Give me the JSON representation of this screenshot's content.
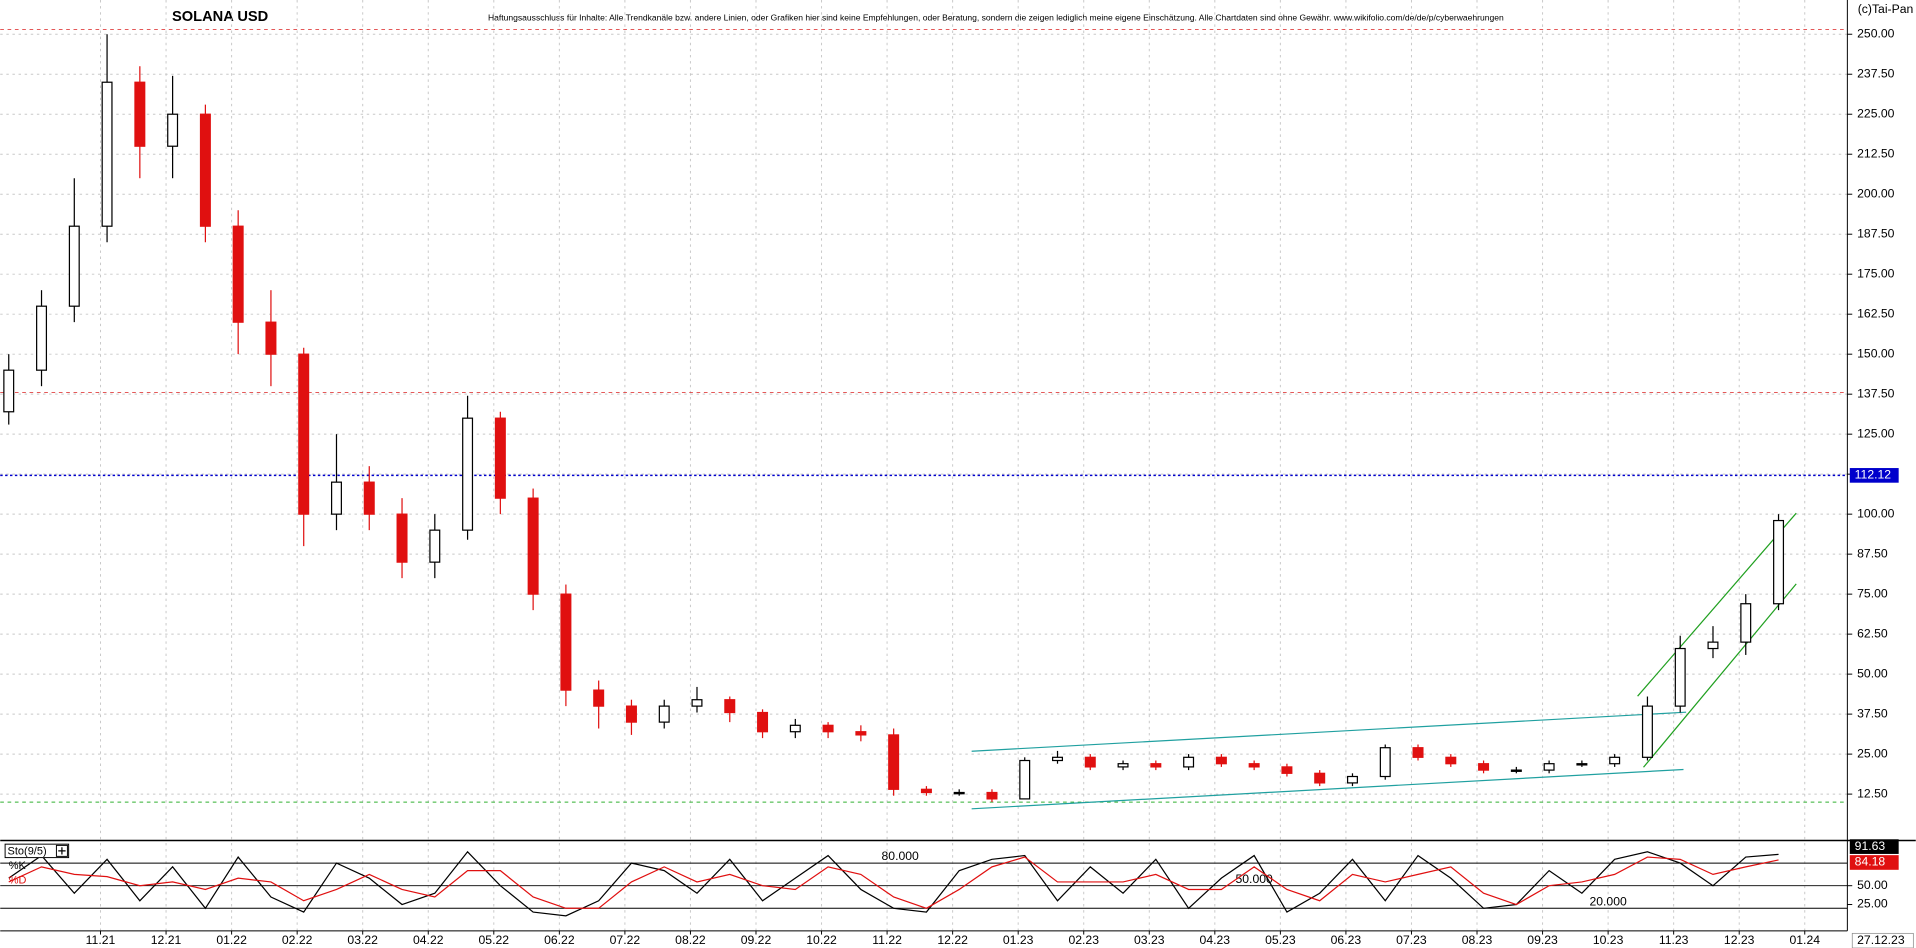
{
  "chart_data": [
    {
      "type": "candlestick",
      "title": "SOLANA USD",
      "subtitle": "Haftungsausschluss für Inhalte: Alle Trendkanäle bzw. andere Linien, oder Grafiken hier sind keine Empfehlungen, oder Beratung, sondern die zeigen lediglich meine eigene Einschätzung. Alle Chartdaten sind ohne Gewähr. www.wikifolio.com/de/de/p/cyberwaehrungen",
      "copyright": "(c)Tai-Pan",
      "up_color": "#000000",
      "down_color": "#e01010",
      "x": [
        -1.4,
        -0.9,
        -0.4,
        0.1,
        0.6,
        1.1,
        1.6,
        2.1,
        2.6,
        3.1,
        3.6,
        4.1,
        4.6,
        5.1,
        5.6,
        6.1,
        6.6,
        7.1,
        7.6,
        8.1,
        8.6,
        9.1,
        9.6,
        10.1,
        10.6,
        11.1,
        11.6,
        12.1,
        12.6,
        13.1,
        13.6,
        14.1,
        14.6,
        15.1,
        15.6,
        16.1,
        16.6,
        17.1,
        17.6,
        18.1,
        18.6,
        19.1,
        19.6,
        20.1,
        20.6,
        21.1,
        21.6,
        22.1,
        22.6,
        23.1,
        23.6,
        24.1,
        24.6,
        25.1,
        25.6
      ],
      "open": [
        132,
        145,
        165,
        190,
        235,
        215,
        225,
        190,
        160,
        150,
        100,
        110,
        100,
        85,
        95,
        130,
        105,
        75,
        45,
        40,
        35,
        40,
        42,
        38,
        32,
        34,
        32,
        31,
        14,
        13,
        13,
        11,
        23,
        24,
        21,
        22,
        21,
        24,
        22,
        21,
        19,
        16,
        18,
        27,
        24,
        22,
        20,
        20,
        22,
        22,
        24,
        40,
        58,
        60,
        72
      ],
      "high": [
        150,
        170,
        205,
        250,
        240,
        237,
        228,
        195,
        170,
        152,
        125,
        115,
        105,
        100,
        137,
        132,
        108,
        78,
        48,
        42,
        42,
        46,
        43,
        39,
        36,
        35,
        34,
        33,
        15,
        14,
        14,
        24,
        26,
        25,
        23,
        23,
        25,
        25,
        23,
        22,
        20,
        19,
        28,
        28,
        25,
        23,
        21,
        23,
        23,
        25,
        43,
        62,
        65,
        75,
        100
      ],
      "low": [
        128,
        140,
        160,
        185,
        205,
        205,
        185,
        150,
        140,
        90,
        95,
        95,
        80,
        80,
        92,
        100,
        70,
        40,
        33,
        31,
        33,
        38,
        35,
        30,
        30,
        30,
        29,
        12,
        12,
        12,
        10,
        11,
        22,
        20,
        20,
        20,
        20,
        21,
        20,
        18,
        15,
        15,
        17,
        23,
        21,
        19,
        19,
        19,
        21,
        21,
        23,
        38,
        55,
        56,
        70
      ],
      "close": [
        145,
        165,
        190,
        235,
        215,
        225,
        190,
        160,
        150,
        100,
        110,
        100,
        85,
        95,
        130,
        105,
        75,
        45,
        40,
        35,
        40,
        42,
        38,
        32,
        34,
        32,
        31,
        14,
        13,
        13,
        11,
        23,
        24,
        21,
        22,
        21,
        24,
        22,
        21,
        19,
        16,
        18,
        27,
        24,
        22,
        20,
        20,
        22,
        22,
        24,
        40,
        58,
        60,
        72,
        98
      ],
      "xlim": [
        -1.53,
        26.65
      ],
      "ylim": [
        -2,
        260.7
      ],
      "yticks": [
        {
          "value": 12.5,
          "label": "12.50"
        },
        {
          "value": 25,
          "label": "25.00"
        },
        {
          "value": 37.5,
          "label": "37.50"
        },
        {
          "value": 50,
          "label": "50.00"
        },
        {
          "value": 62.5,
          "label": "62.50"
        },
        {
          "value": 75,
          "label": "75.00"
        },
        {
          "value": 87.5,
          "label": "87.50"
        },
        {
          "value": 100,
          "label": "100.00"
        },
        {
          "value": 112.5,
          "label": "112.50"
        },
        {
          "value": 125,
          "label": "125.00"
        },
        {
          "value": 137.5,
          "label": "137.50"
        },
        {
          "value": 150,
          "label": "150.00"
        },
        {
          "value": 162.5,
          "label": "162.50"
        },
        {
          "value": 175,
          "label": "175.00"
        },
        {
          "value": 187.5,
          "label": "187.50"
        },
        {
          "value": 200,
          "label": "200.00"
        },
        {
          "value": 212.5,
          "label": "212.50"
        },
        {
          "value": 225,
          "label": "225.00"
        },
        {
          "value": 237.5,
          "label": "237.50"
        },
        {
          "value": 250,
          "label": "250.00"
        }
      ],
      "grid": true,
      "hlines": [
        {
          "value": 251.5,
          "color": "#e04040"
        },
        {
          "value": 138,
          "color": "#e04040"
        },
        {
          "value": 10,
          "color": "#30b030"
        },
        {
          "value": 112.12,
          "color": "#0000cc",
          "label": "112.12"
        }
      ],
      "trendlines": [
        {
          "x": [
            13.29,
            24.19
          ],
          "y": [
            25.9,
            38.1
          ],
          "color": "#20a0a0"
        },
        {
          "x": [
            13.29,
            24.15
          ],
          "y": [
            7.9,
            20.2
          ],
          "color": "#20a0a0"
        },
        {
          "x": [
            23.45,
            25.87
          ],
          "y": [
            43.1,
            100.3
          ],
          "color": "#20a020"
        },
        {
          "x": [
            23.54,
            25.87
          ],
          "y": [
            20.9,
            78.2
          ],
          "color": "#20a020"
        }
      ]
    },
    {
      "type": "line",
      "title": "Sto(9/5)",
      "last_date": "27.12.23",
      "x": [
        -1.4,
        -0.9,
        -0.4,
        0.1,
        0.6,
        1.1,
        1.6,
        2.1,
        2.6,
        3.1,
        3.6,
        4.1,
        4.6,
        5.1,
        5.6,
        6.1,
        6.6,
        7.1,
        7.6,
        8.1,
        8.6,
        9.1,
        9.6,
        10.1,
        10.6,
        11.1,
        11.6,
        12.1,
        12.6,
        13.1,
        13.6,
        14.1,
        14.6,
        15.1,
        15.6,
        16.1,
        16.6,
        17.1,
        17.6,
        18.1,
        18.6,
        19.1,
        19.6,
        20.1,
        20.6,
        21.1,
        21.6,
        22.1,
        22.6,
        23.1,
        23.6,
        24.1,
        24.6,
        25.1,
        25.6
      ],
      "series": [
        {
          "name": "%K",
          "color": "#000000",
          "values": [
            60,
            90,
            40,
            85,
            30,
            75,
            20,
            88,
            35,
            15,
            80,
            60,
            25,
            40,
            95,
            50,
            15,
            10,
            30,
            80,
            70,
            40,
            85,
            30,
            60,
            90,
            45,
            20,
            15,
            70,
            85,
            90,
            30,
            75,
            40,
            85,
            20,
            60,
            90,
            15,
            40,
            85,
            30,
            90,
            60,
            20,
            25,
            70,
            40,
            85,
            95,
            80,
            50,
            88,
            91.63
          ]
        },
        {
          "name": "%D",
          "color": "#e01010",
          "values": [
            55,
            75,
            65,
            62,
            50,
            55,
            45,
            60,
            55,
            30,
            45,
            65,
            45,
            35,
            70,
            70,
            35,
            20,
            20,
            55,
            75,
            55,
            65,
            50,
            45,
            75,
            65,
            35,
            20,
            45,
            75,
            88,
            55,
            55,
            55,
            65,
            45,
            45,
            75,
            45,
            30,
            65,
            55,
            65,
            75,
            40,
            25,
            50,
            55,
            65,
            88,
            85,
            65,
            75,
            84.18
          ]
        }
      ],
      "xlim": [
        -1.53,
        26.65
      ],
      "ylim": [
        -10,
        110
      ],
      "yticks": [
        {
          "value": 25,
          "label": "25.00"
        },
        {
          "value": 50,
          "label": "50.00"
        }
      ],
      "levels": [
        {
          "value": 80,
          "label": "80.000",
          "pos": 12.2
        },
        {
          "value": 50,
          "label": "50.000",
          "pos": 17.6
        },
        {
          "value": 20,
          "label": "20.000",
          "pos": 23.0
        }
      ],
      "xticks": [
        {
          "value": 0,
          "label": "11.21"
        },
        {
          "value": 1,
          "label": "12.21"
        },
        {
          "value": 2,
          "label": "01.22"
        },
        {
          "value": 3,
          "label": "02.22"
        },
        {
          "value": 4,
          "label": "03.22"
        },
        {
          "value": 5,
          "label": "04.22"
        },
        {
          "value": 6,
          "label": "05.22"
        },
        {
          "value": 7,
          "label": "06.22"
        },
        {
          "value": 8,
          "label": "07.22"
        },
        {
          "value": 9,
          "label": "08.22"
        },
        {
          "value": 10,
          "label": "09.22"
        },
        {
          "value": 11,
          "label": "10.22"
        },
        {
          "value": 12,
          "label": "11.22"
        },
        {
          "value": 13,
          "label": "12.22"
        },
        {
          "value": 14,
          "label": "01.23"
        },
        {
          "value": 15,
          "label": "02.23"
        },
        {
          "value": 16,
          "label": "03.23"
        },
        {
          "value": 17,
          "label": "04.23"
        },
        {
          "value": 18,
          "label": "05.23"
        },
        {
          "value": 19,
          "label": "06.23"
        },
        {
          "value": 20,
          "label": "07.23"
        },
        {
          "value": 21,
          "label": "08.23"
        },
        {
          "value": 22,
          "label": "09.23"
        },
        {
          "value": 23,
          "label": "10.23"
        },
        {
          "value": 24,
          "label": "11.23"
        },
        {
          "value": 25,
          "label": "12.23"
        },
        {
          "value": 26,
          "label": "01.24"
        }
      ]
    }
  ]
}
